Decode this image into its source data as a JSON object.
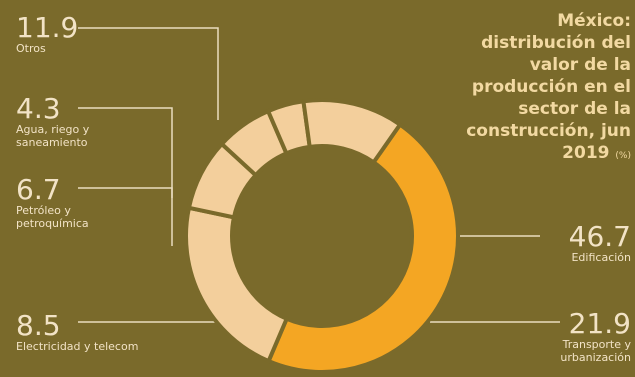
{
  "chart_data": {
    "type": "pie",
    "title": "México: distribución del valor de la producción en el sector de la construcción, jun 2019",
    "unit": "(%)",
    "slices": [
      {
        "label": "Edificación",
        "value": 46.7,
        "color": "#f4a623"
      },
      {
        "label": "Transporte y urbanización",
        "value": 21.9,
        "color": "#f3cf9c"
      },
      {
        "label": "Electricidad y telecom",
        "value": 8.5,
        "color": "#f3cf9c"
      },
      {
        "label": "Petróleo y petroquímica",
        "value": 6.7,
        "color": "#f3cf9c"
      },
      {
        "label": "Agua, riego y saneamiento",
        "value": 4.3,
        "color": "#f3cf9c"
      },
      {
        "label": "Otros",
        "value": 11.9,
        "color": "#f3cf9c"
      }
    ],
    "legend": "none"
  },
  "labels": {
    "otros": {
      "value": "11.9",
      "name": "Otros"
    },
    "agua": {
      "value": "4.3",
      "name": "Agua, riego y saneamiento"
    },
    "petro": {
      "value": "6.7",
      "name": "Petróleo y petroquímica"
    },
    "elec": {
      "value": "8.5",
      "name": "Electricidad y telecom"
    },
    "edif": {
      "value": "46.7",
      "name": "Edificación"
    },
    "trans": {
      "value": "21.9",
      "name": "Transporte y urbanización"
    }
  },
  "colors": {
    "background": "#7a6a2b",
    "highlight": "#f4a623",
    "segment": "#f3cf9c",
    "text": "#f2e3c6",
    "title": "#f2d9a2"
  }
}
